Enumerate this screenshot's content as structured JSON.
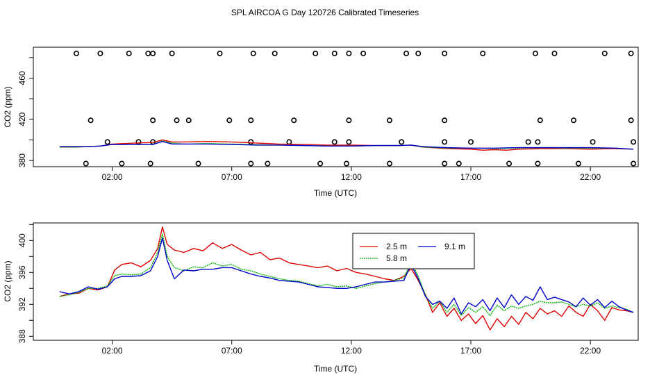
{
  "title": "SPL AIRCOA G  Day 120726  Calibrated Timeseries",
  "colors": {
    "s25": "#e00000",
    "s58": "#00b400",
    "s91": "#0000cc",
    "axis": "#000000"
  },
  "chart_data": [
    {
      "type": "line",
      "name": "top-panel",
      "xlabel": "Time (UTC)",
      "ylabel": "CO2 (ppm)",
      "xlim": [
        -1.3,
        24.0
      ],
      "ylim": [
        374,
        490
      ],
      "xticks": [
        2,
        7,
        12,
        17,
        22
      ],
      "xticklabels": [
        "02:00",
        "07:00",
        "12:00",
        "17:00",
        "22:00"
      ],
      "yticks": [
        380,
        420,
        460
      ],
      "yticklabels": [
        "380",
        "420",
        "460"
      ],
      "extra_yticks": [
        400,
        440,
        480
      ],
      "series": [
        {
          "name": "2.5 m",
          "color": "#e00000",
          "x": [
            -0.2,
            0.5,
            1,
            1.5,
            2,
            3,
            3.7,
            4.1,
            4.5,
            5,
            6,
            7,
            8,
            9,
            10,
            11,
            12,
            13,
            14,
            14.5,
            15,
            16,
            17,
            17.5,
            18,
            18.5,
            19,
            20,
            21,
            22,
            23,
            23.8
          ],
          "y": [
            393,
            393,
            393.5,
            394,
            396,
            397,
            397.5,
            400,
            398,
            398,
            398.5,
            398,
            397,
            396,
            395.5,
            395,
            395,
            394.5,
            394.5,
            395,
            393,
            391.5,
            391,
            390,
            390.5,
            390,
            391,
            391.5,
            391.5,
            391,
            391.5,
            391
          ]
        },
        {
          "name": "5.8 m",
          "color": "#00b400",
          "x": [
            -0.2,
            0.5,
            1,
            1.5,
            2,
            3,
            3.7,
            4.1,
            4.5,
            5,
            6,
            7,
            8,
            9,
            10,
            11,
            12,
            13,
            14,
            14.5,
            15,
            16,
            17,
            18,
            19,
            20,
            21,
            22,
            23,
            23.8
          ],
          "y": [
            393,
            393,
            393.5,
            394,
            395.5,
            395.5,
            395.5,
            399,
            397,
            396,
            396.5,
            396,
            395.5,
            395,
            394.5,
            394,
            394,
            394.5,
            394.5,
            395,
            393,
            392,
            392,
            391.5,
            392,
            392.5,
            392,
            392,
            392,
            391
          ]
        },
        {
          "name": "9.1 m",
          "color": "#0000cc",
          "x": [
            -0.2,
            0.5,
            1,
            1.5,
            2,
            3,
            3.7,
            4.1,
            4.5,
            5,
            6,
            7,
            8,
            9,
            10,
            11,
            12,
            13,
            14,
            14.5,
            15,
            16,
            17,
            18,
            19,
            20,
            21,
            22,
            23,
            23.8
          ],
          "y": [
            393.5,
            393.5,
            393.5,
            394,
            395.5,
            395.5,
            395.5,
            398.5,
            396,
            396,
            396,
            395.5,
            395,
            395,
            394.5,
            394,
            394,
            394.5,
            394.5,
            395,
            393.5,
            392.5,
            392,
            392,
            392.5,
            392.5,
            392.5,
            392.5,
            392,
            391
          ]
        }
      ],
      "markers": {
        "name": "calibration points",
        "symbol": "open-circle",
        "x": [
          0.5,
          1.5,
          2.7,
          3.5,
          3.7,
          4.5,
          6.5,
          7.9,
          8.8,
          10.5,
          11.3,
          11.9,
          12.5,
          14.3,
          14.8,
          15.9,
          17.5,
          19.7,
          20.5,
          22.6,
          23.7,
          1.1,
          3.7,
          4.7,
          5.2,
          6.9,
          7.8,
          9.6,
          11.9,
          13.6,
          15.9,
          19.9,
          21.3,
          23.7,
          1.8,
          3.1,
          3.7,
          7.8,
          9.4,
          11.3,
          11.9,
          14.1,
          15.9,
          17.0,
          19.4,
          19.8,
          22.1,
          23.8,
          0.9,
          2.4,
          3.6,
          5.6,
          7.8,
          8.5,
          10.7,
          11.8,
          13.6,
          15.9,
          16.5,
          18.6,
          19.8,
          21.5,
          23.8
        ],
        "y": [
          484,
          484,
          484,
          484,
          484,
          484,
          484,
          484,
          484,
          484,
          484,
          484,
          484,
          484,
          484,
          484,
          484,
          484,
          484,
          484,
          484,
          419,
          419,
          419,
          419,
          419,
          419,
          419,
          419,
          419,
          419,
          419,
          419,
          419,
          398,
          398,
          398,
          398,
          398,
          398,
          398,
          398,
          398,
          398,
          398,
          398,
          398,
          398,
          377,
          377,
          377,
          377,
          377,
          377,
          377,
          377,
          377,
          377,
          377,
          377,
          377,
          377,
          377
        ]
      }
    },
    {
      "type": "line",
      "name": "bottom-panel",
      "xlabel": "Time (UTC)",
      "ylabel": "CO2 (ppm)",
      "xlim": [
        -1.3,
        24.0
      ],
      "ylim": [
        387.5,
        402.2
      ],
      "xticks": [
        2,
        7,
        12,
        17,
        22
      ],
      "xticklabels": [
        "02:00",
        "07:00",
        "12:00",
        "17:00",
        "22:00"
      ],
      "yticks": [
        388,
        392,
        396,
        400
      ],
      "yticklabels": [
        "388",
        "392",
        "396",
        "400"
      ],
      "extra_yticks": [
        390,
        394,
        398,
        402
      ],
      "legend": {
        "placement": "top-right",
        "entries": [
          "2.5 m",
          "5.8 m",
          "9.1 m"
        ]
      },
      "series": [
        {
          "name": "2.5 m",
          "color": "#e00000",
          "x": [
            -0.2,
            0.2,
            0.6,
            1.0,
            1.4,
            1.8,
            2.1,
            2.4,
            2.8,
            3.2,
            3.6,
            3.9,
            4.1,
            4.3,
            4.6,
            5.0,
            5.4,
            5.8,
            6.2,
            6.6,
            7.0,
            7.4,
            7.8,
            8.2,
            8.6,
            9.0,
            9.4,
            9.8,
            10.2,
            10.6,
            11.0,
            11.4,
            11.8,
            12.2,
            12.6,
            13.0,
            13.4,
            13.8,
            14.2,
            14.5,
            14.8,
            15.1,
            15.4,
            15.7,
            16.0,
            16.3,
            16.6,
            16.9,
            17.2,
            17.5,
            17.8,
            18.1,
            18.4,
            18.7,
            19.0,
            19.3,
            19.6,
            19.9,
            20.2,
            20.5,
            20.8,
            21.1,
            21.4,
            21.7,
            22.0,
            22.3,
            22.6,
            22.9,
            23.2,
            23.5,
            23.8
          ],
          "y": [
            393.0,
            393.3,
            393.4,
            394.0,
            393.8,
            394.2,
            396.3,
            397.0,
            397.2,
            396.7,
            397.5,
            399.0,
            401.7,
            399.5,
            398.8,
            398.5,
            399.0,
            398.7,
            399.7,
            399.0,
            399.5,
            398.8,
            398.2,
            398.5,
            397.6,
            397.8,
            397.2,
            397.0,
            396.8,
            396.6,
            396.8,
            396.2,
            396.5,
            396.0,
            395.8,
            395.5,
            395.2,
            395.0,
            395.5,
            396.5,
            395.0,
            393.2,
            391.0,
            392.2,
            390.5,
            391.5,
            390.0,
            390.8,
            389.6,
            390.6,
            388.8,
            390.2,
            389.2,
            390.5,
            389.5,
            391.0,
            390.2,
            391.5,
            390.8,
            391.2,
            390.5,
            391.8,
            391.0,
            390.5,
            392.0,
            391.2,
            390.0,
            391.6,
            391.3,
            391.2,
            391.0
          ]
        },
        {
          "name": "5.8 m",
          "color": "#00b400",
          "x": [
            -0.2,
            0.2,
            0.6,
            1.0,
            1.4,
            1.8,
            2.1,
            2.4,
            2.8,
            3.2,
            3.6,
            3.9,
            4.1,
            4.3,
            4.6,
            5.0,
            5.4,
            5.8,
            6.2,
            6.6,
            7.0,
            7.4,
            7.8,
            8.2,
            8.6,
            9.0,
            9.4,
            9.8,
            10.2,
            10.6,
            11.0,
            11.4,
            11.8,
            12.2,
            12.6,
            13.0,
            13.4,
            13.8,
            14.2,
            14.5,
            14.8,
            15.1,
            15.4,
            15.7,
            16.0,
            16.3,
            16.6,
            16.9,
            17.2,
            17.5,
            17.8,
            18.1,
            18.4,
            18.7,
            19.0,
            19.3,
            19.6,
            19.9,
            20.2,
            20.5,
            20.8,
            21.1,
            21.4,
            21.7,
            22.0,
            22.3,
            22.6,
            22.9,
            23.2,
            23.5,
            23.8
          ],
          "y": [
            393.0,
            393.2,
            393.5,
            394.0,
            394.0,
            394.3,
            395.6,
            395.8,
            395.7,
            395.8,
            396.6,
            398.5,
            400.8,
            398.0,
            396.6,
            396.2,
            396.7,
            396.6,
            397.2,
            396.8,
            397.0,
            396.4,
            396.2,
            395.8,
            395.5,
            395.2,
            395.0,
            394.9,
            394.6,
            394.3,
            394.5,
            394.2,
            394.3,
            394.0,
            394.3,
            394.6,
            394.8,
            395.0,
            395.3,
            397.4,
            395.5,
            393.2,
            391.5,
            392.4,
            391.0,
            392.0,
            390.6,
            391.6,
            391.0,
            391.7,
            390.6,
            391.9,
            391.2,
            391.8,
            391.5,
            391.8,
            392.0,
            392.4,
            392.2,
            392.2,
            392.3,
            392.0,
            391.7,
            392.0,
            391.8,
            392.2,
            391.5,
            391.8,
            391.6,
            391.4,
            391.0
          ]
        },
        {
          "name": "9.1 m",
          "color": "#0000cc",
          "x": [
            -0.2,
            0.2,
            0.6,
            1.0,
            1.4,
            1.8,
            2.1,
            2.4,
            2.8,
            3.2,
            3.6,
            3.9,
            4.1,
            4.3,
            4.6,
            5.0,
            5.4,
            5.8,
            6.2,
            6.6,
            7.0,
            7.4,
            7.8,
            8.2,
            8.6,
            9.0,
            9.4,
            9.8,
            10.2,
            10.6,
            11.0,
            11.4,
            11.8,
            12.2,
            12.6,
            13.0,
            13.4,
            13.8,
            14.2,
            14.5,
            14.8,
            15.1,
            15.4,
            15.7,
            16.0,
            16.3,
            16.6,
            16.9,
            17.2,
            17.5,
            17.8,
            18.1,
            18.4,
            18.7,
            19.0,
            19.3,
            19.6,
            19.9,
            20.2,
            20.5,
            20.8,
            21.1,
            21.4,
            21.7,
            22.0,
            22.3,
            22.6,
            22.9,
            23.2,
            23.5,
            23.8
          ],
          "y": [
            393.6,
            393.3,
            393.6,
            394.2,
            393.9,
            394.2,
            395.2,
            395.5,
            395.5,
            395.6,
            396.2,
            398.0,
            400.3,
            397.5,
            395.2,
            396.3,
            396.2,
            396.4,
            396.4,
            396.6,
            396.6,
            396.2,
            395.8,
            395.5,
            395.3,
            395.0,
            394.9,
            394.8,
            394.5,
            394.2,
            394.1,
            394.0,
            394.0,
            394.2,
            394.5,
            394.8,
            394.8,
            394.9,
            395.0,
            397.0,
            395.2,
            393.0,
            392.0,
            392.4,
            391.5,
            392.8,
            390.8,
            392.2,
            391.7,
            392.6,
            391.2,
            392.8,
            391.6,
            393.2,
            392.0,
            393.0,
            392.5,
            394.2,
            392.6,
            392.9,
            392.6,
            392.3,
            391.7,
            392.8,
            391.9,
            392.6,
            391.6,
            392.4,
            391.7,
            391.3,
            391.0
          ]
        }
      ]
    }
  ]
}
